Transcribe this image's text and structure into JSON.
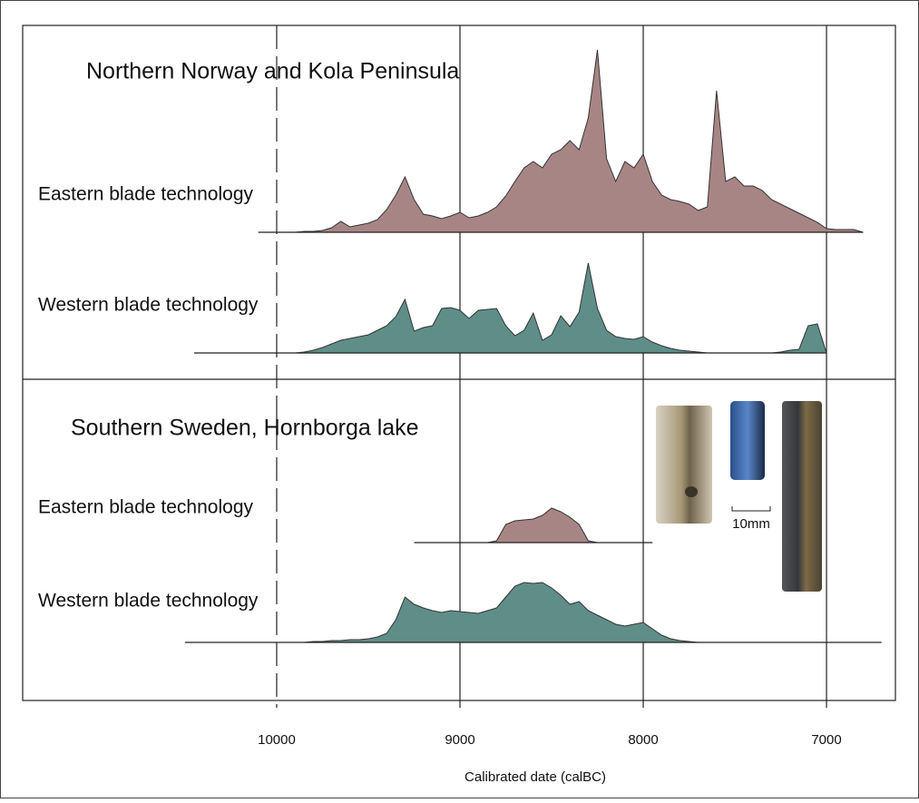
{
  "chart_data": {
    "type": "area",
    "x_label": "Calibrated date (calBC)",
    "xlim": [
      11386,
      6624
    ],
    "xticks": [
      10000,
      9000,
      8000,
      7000
    ],
    "ylim": [
      0,
      200
    ],
    "scale_label": "10mm",
    "x": [
      10500,
      10450,
      10400,
      10350,
      10300,
      10250,
      10200,
      10150,
      10100,
      10050,
      10000,
      9950,
      9900,
      9850,
      9800,
      9750,
      9700,
      9650,
      9600,
      9550,
      9500,
      9450,
      9400,
      9350,
      9300,
      9250,
      9200,
      9150,
      9100,
      9050,
      9000,
      8950,
      8900,
      8850,
      8800,
      8750,
      8700,
      8650,
      8600,
      8550,
      8500,
      8450,
      8400,
      8350,
      8300,
      8250,
      8200,
      8150,
      8100,
      8050,
      8000,
      7950,
      7900,
      7850,
      7800,
      7750,
      7700,
      7650,
      7600,
      7550,
      7500,
      7450,
      7400,
      7350,
      7300,
      7250,
      7200,
      7150,
      7100,
      7050,
      7000,
      6950,
      6900,
      6850,
      6800,
      6750,
      6700
    ],
    "panels": [
      {
        "title": "Northern Norway and Kola Peninsula",
        "series": [
          {
            "name": "Eastern blade technology",
            "color": "#a88585",
            "values": [
              null,
              null,
              null,
              null,
              null,
              null,
              null,
              null,
              0,
              0,
              0,
              0,
              0,
              1,
              1,
              2,
              5,
              12,
              6,
              8,
              10,
              14,
              25,
              41,
              61,
              36,
              20,
              18,
              15,
              18,
              22,
              16,
              18,
              22,
              28,
              40,
              56,
              71,
              78,
              71,
              86,
              91,
              101,
              91,
              126,
              201,
              81,
              56,
              78,
              71,
              86,
              56,
              41,
              36,
              34,
              31,
              24,
              28,
              156,
              56,
              61,
              51,
              51,
              46,
              36,
              31,
              26,
              21,
              16,
              11,
              4,
              3,
              3,
              3,
              0,
              null,
              null
            ]
          },
          {
            "name": "Western blade technology",
            "color": "#5e8e87",
            "values": [
              null,
              0,
              0,
              0,
              0,
              0,
              0,
              0,
              0,
              0,
              0,
              0,
              0,
              1,
              3,
              6,
              10,
              14,
              16,
              18,
              20,
              25,
              30,
              40,
              59,
              24,
              28,
              30,
              49,
              50,
              47,
              38,
              47,
              48,
              49,
              30,
              19,
              25,
              44,
              14,
              20,
              41,
              29,
              45,
              99,
              49,
              25,
              18,
              16,
              15,
              18,
              12,
              8,
              5,
              3,
              2,
              1,
              0,
              0,
              0,
              0,
              0,
              0,
              0,
              0,
              1,
              3,
              4,
              30,
              32,
              0,
              null,
              null,
              null,
              null,
              null,
              null
            ]
          }
        ]
      },
      {
        "title": "Southern Sweden, Hornborga lake",
        "series": [
          {
            "name": "Eastern blade technology",
            "color": "#a88585",
            "values": [
              null,
              null,
              null,
              null,
              null,
              null,
              null,
              null,
              null,
              null,
              null,
              null,
              null,
              null,
              null,
              null,
              null,
              null,
              null,
              null,
              null,
              null,
              null,
              null,
              null,
              0,
              0,
              0,
              0,
              0,
              0,
              0,
              0,
              0,
              2,
              20,
              24,
              25,
              26,
              30,
              38,
              34,
              28,
              20,
              2,
              0,
              0,
              0,
              0,
              0,
              0,
              0,
              null,
              null,
              null,
              null,
              null,
              null,
              null,
              null,
              null,
              null,
              null,
              null,
              null,
              null,
              null,
              null,
              null,
              null,
              null,
              null,
              null,
              null,
              null,
              null,
              null
            ]
          },
          {
            "name": "Western blade technology",
            "color": "#5e8e87",
            "values": [
              0,
              0,
              0,
              0,
              0,
              0,
              0,
              0,
              0,
              0,
              0,
              0,
              0,
              0,
              1,
              1,
              2,
              2,
              3,
              3,
              4,
              6,
              10,
              25,
              50,
              42,
              38,
              35,
              33,
              35,
              34,
              33,
              32,
              35,
              38,
              50,
              62,
              66,
              65,
              66,
              60,
              52,
              42,
              45,
              35,
              30,
              25,
              20,
              18,
              20,
              22,
              15,
              8,
              4,
              2,
              1,
              0,
              0,
              0,
              0,
              0,
              0,
              0,
              0,
              0,
              0,
              0,
              0,
              0,
              0,
              0,
              0,
              0,
              0,
              0,
              0,
              0
            ]
          }
        ]
      }
    ]
  }
}
